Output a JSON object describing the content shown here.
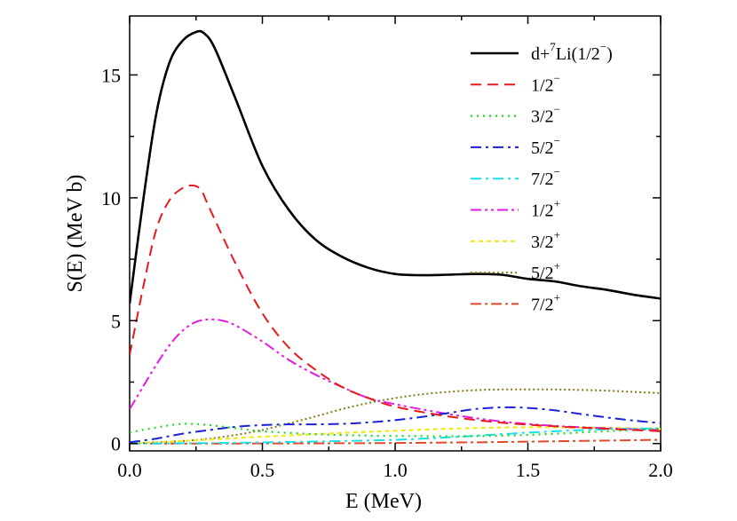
{
  "chart_data": {
    "type": "line",
    "title": "",
    "xlabel": "E (MeV)",
    "ylabel": "S(E) (MeV b)",
    "xlim": [
      0.0,
      2.0
    ],
    "ylim": [
      -0.3,
      17.4
    ],
    "x_ticks": [
      0.0,
      0.5,
      1.0,
      1.5,
      2.0
    ],
    "x_tick_labels": [
      "0.0",
      "0.5",
      "1.0",
      "1.5",
      "2.0"
    ],
    "y_ticks": [
      0,
      5,
      10,
      15
    ],
    "y_tick_labels": [
      "0",
      "5",
      "10",
      "15"
    ],
    "legend_position": "top-right",
    "series": [
      {
        "name": "d+7Li(1/2−)",
        "legend": {
          "base": "d+",
          "sup1": "7",
          "mid": "Li(1/2",
          "sup2": "−",
          "tail": ")"
        },
        "color": "#000000",
        "dash": "",
        "width": 2.6,
        "x": [
          0.0,
          0.05,
          0.1,
          0.15,
          0.2,
          0.25,
          0.28,
          0.32,
          0.4,
          0.5,
          0.6,
          0.7,
          0.8,
          0.9,
          1.0,
          1.1,
          1.2,
          1.3,
          1.4,
          1.5,
          1.6,
          1.7,
          1.8,
          1.9,
          2.0
        ],
        "y": [
          5.7,
          9.8,
          13.4,
          15.5,
          16.4,
          16.75,
          16.7,
          16.1,
          14.0,
          11.3,
          9.5,
          8.3,
          7.6,
          7.15,
          6.9,
          6.85,
          6.87,
          6.9,
          6.87,
          6.7,
          6.6,
          6.4,
          6.25,
          6.05,
          5.9
        ]
      },
      {
        "name": "1/2−",
        "legend": {
          "base": "1/2",
          "sup1": "−"
        },
        "color": "#e8191c",
        "dash": "12,7",
        "width": 2,
        "x": [
          0.0,
          0.05,
          0.1,
          0.15,
          0.2,
          0.24,
          0.27,
          0.3,
          0.4,
          0.5,
          0.6,
          0.7,
          0.8,
          0.9,
          1.0,
          1.2,
          1.4,
          1.6,
          1.8,
          2.0
        ],
        "y": [
          3.6,
          6.3,
          8.7,
          9.9,
          10.4,
          10.5,
          10.3,
          9.6,
          7.3,
          5.3,
          3.9,
          3.0,
          2.3,
          1.85,
          1.5,
          1.1,
          0.85,
          0.7,
          0.6,
          0.5
        ]
      },
      {
        "name": "3/2−",
        "legend": {
          "base": "3/2",
          "sup1": "−"
        },
        "color": "#22d62a",
        "dash": "2,5",
        "width": 2.2,
        "x": [
          0.0,
          0.1,
          0.2,
          0.3,
          0.4,
          0.5,
          0.7,
          0.9,
          1.1,
          1.3,
          1.5,
          1.7,
          1.9,
          2.0
        ],
        "y": [
          0.45,
          0.65,
          0.8,
          0.75,
          0.62,
          0.5,
          0.38,
          0.32,
          0.3,
          0.3,
          0.35,
          0.45,
          0.55,
          0.6
        ]
      },
      {
        "name": "5/2−",
        "legend": {
          "base": "5/2",
          "sup1": "−"
        },
        "color": "#1a22d8",
        "dash": "12,5,3,5",
        "width": 2,
        "x": [
          0.0,
          0.1,
          0.2,
          0.3,
          0.4,
          0.5,
          0.6,
          0.7,
          0.8,
          0.9,
          1.0,
          1.1,
          1.2,
          1.3,
          1.4,
          1.5,
          1.6,
          1.7,
          1.8,
          1.9,
          2.0
        ],
        "y": [
          0.05,
          0.2,
          0.4,
          0.55,
          0.68,
          0.75,
          0.78,
          0.78,
          0.8,
          0.86,
          0.95,
          1.08,
          1.24,
          1.4,
          1.47,
          1.45,
          1.35,
          1.2,
          1.06,
          0.93,
          0.83
        ]
      },
      {
        "name": "7/2−",
        "legend": {
          "base": "7/2",
          "sup1": "−"
        },
        "color": "#1ae0e6",
        "dash": "12,5,3,5",
        "width": 2,
        "x": [
          0.0,
          0.2,
          0.4,
          0.6,
          0.8,
          1.0,
          1.2,
          1.4,
          1.6,
          1.8,
          2.0
        ],
        "y": [
          0.0,
          0.01,
          0.03,
          0.06,
          0.1,
          0.15,
          0.25,
          0.38,
          0.5,
          0.58,
          0.62
        ]
      },
      {
        "name": "1/2+",
        "legend": {
          "base": "1/2",
          "sup1": "+"
        },
        "color": "#e619e3",
        "dash": "12,4,3,4,3,4",
        "width": 2,
        "x": [
          0.0,
          0.05,
          0.1,
          0.15,
          0.2,
          0.25,
          0.3,
          0.35,
          0.4,
          0.5,
          0.6,
          0.7,
          0.8,
          0.9,
          1.0,
          1.2,
          1.4,
          1.6,
          1.8,
          2.0
        ],
        "y": [
          1.4,
          2.3,
          3.2,
          4.0,
          4.6,
          4.95,
          5.05,
          5.0,
          4.8,
          4.15,
          3.4,
          2.8,
          2.3,
          1.85,
          1.6,
          1.2,
          0.9,
          0.72,
          0.62,
          0.55
        ]
      },
      {
        "name": "3/2+",
        "legend": {
          "base": "3/2",
          "sup1": "+"
        },
        "color": "#f2e81a",
        "dash": "5,4",
        "width": 2.2,
        "x": [
          0.0,
          0.2,
          0.4,
          0.6,
          0.8,
          1.0,
          1.2,
          1.4,
          1.6,
          1.8,
          2.0
        ],
        "y": [
          0.0,
          0.1,
          0.22,
          0.33,
          0.43,
          0.52,
          0.6,
          0.65,
          0.66,
          0.64,
          0.6
        ]
      },
      {
        "name": "5/2+",
        "legend": {
          "base": "5/2",
          "sup1": "+"
        },
        "color": "#857a10",
        "dash": "2,3",
        "width": 2,
        "x": [
          0.0,
          0.2,
          0.3,
          0.4,
          0.5,
          0.6,
          0.7,
          0.8,
          0.9,
          1.0,
          1.1,
          1.2,
          1.3,
          1.4,
          1.5,
          1.6,
          1.7,
          1.8,
          1.9,
          2.0
        ],
        "y": [
          0.0,
          0.1,
          0.2,
          0.35,
          0.55,
          0.82,
          1.1,
          1.4,
          1.65,
          1.85,
          2.0,
          2.1,
          2.17,
          2.2,
          2.2,
          2.2,
          2.18,
          2.15,
          2.1,
          2.05
        ]
      },
      {
        "name": "7/2+",
        "legend": {
          "base": "7/2",
          "sup1": "+"
        },
        "color": "#e04a2a",
        "dash": "12,4,3,4",
        "width": 2,
        "x": [
          0.0,
          0.4,
          0.8,
          1.0,
          1.2,
          1.4,
          1.6,
          1.8,
          2.0
        ],
        "y": [
          0.0,
          0.0,
          0.01,
          0.02,
          0.04,
          0.06,
          0.09,
          0.12,
          0.15
        ]
      }
    ]
  }
}
